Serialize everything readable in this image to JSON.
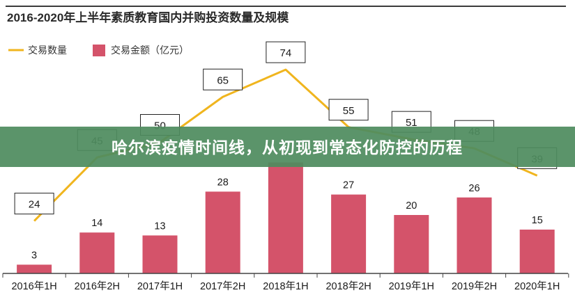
{
  "chart_data": {
    "type": "bar",
    "title": "2016-2020年上半年素质教育国内并购投资数量及规模",
    "categories": [
      "2016年1H",
      "2016年2H",
      "2017年1H",
      "2017年2H",
      "2018年1H",
      "2018年2H",
      "2019年1H",
      "2019年2H",
      "2020年1H"
    ],
    "series": [
      {
        "name": "交易金额（亿元）",
        "kind": "bar",
        "values": [
          3,
          14,
          13,
          28,
          38,
          27,
          20,
          26,
          15
        ],
        "color": "#d4536a"
      },
      {
        "name": "交易数量",
        "kind": "line",
        "values": [
          24,
          45,
          50,
          65,
          74,
          55,
          51,
          48,
          39
        ],
        "color": "#f0b51e"
      }
    ],
    "bar_labels": [
      "3",
      "14",
      "13",
      "28",
      "",
      "27",
      "20",
      "26",
      "15"
    ],
    "line_labels": [
      "24",
      "45",
      "50",
      "65",
      "74",
      "55",
      "51",
      "48",
      "39"
    ],
    "legend_position": "top-left",
    "grid": false
  },
  "overlay": {
    "text": "哈尔滨疫情时间线，从初现到常态化防控的历程",
    "background": "#4f8c5f"
  }
}
